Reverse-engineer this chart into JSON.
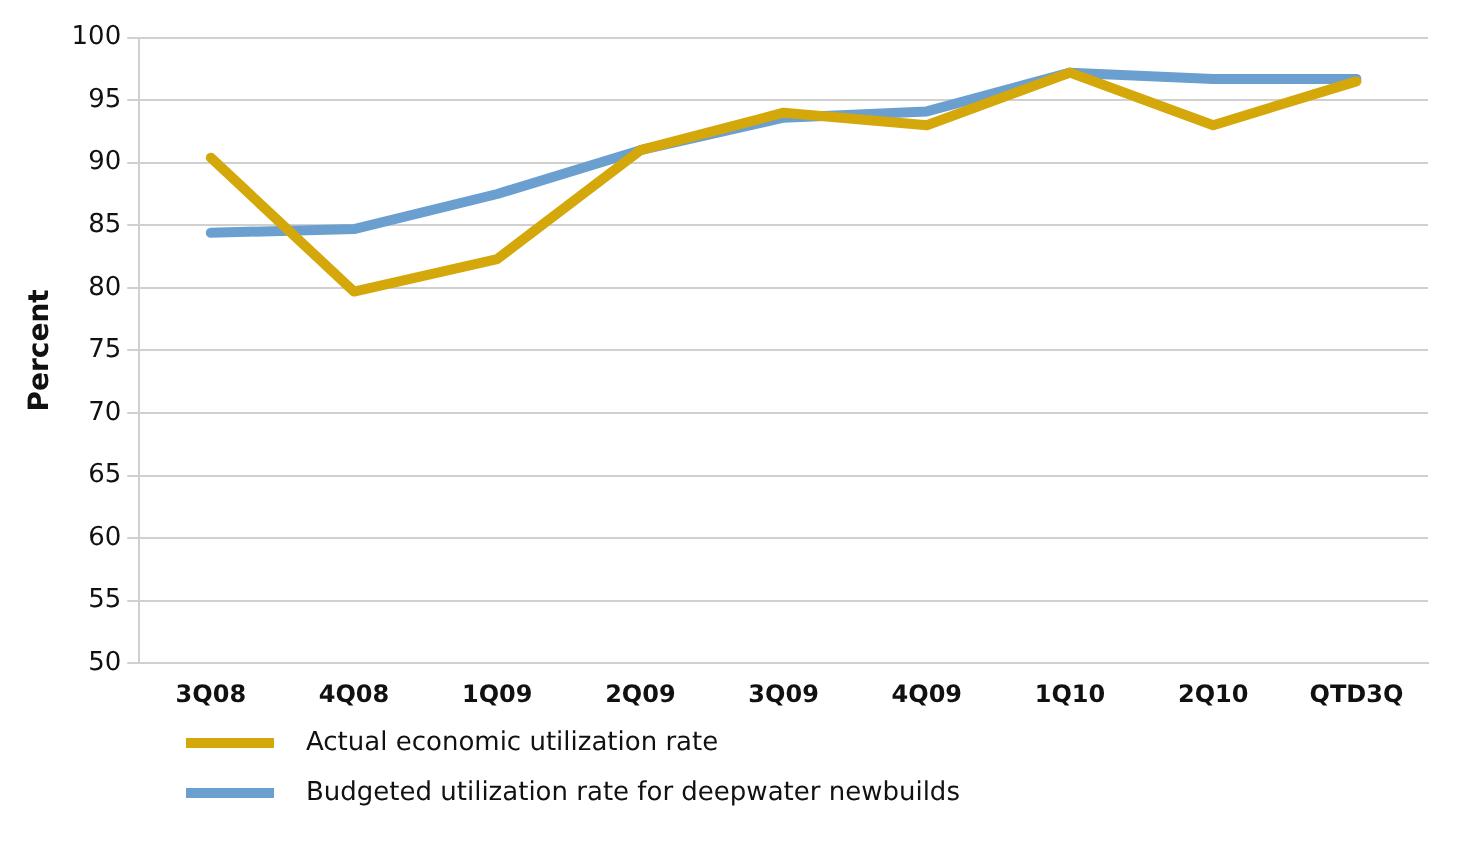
{
  "chart_data": {
    "type": "line",
    "ylabel": "Percent",
    "categories": [
      "3Q08",
      "4Q08",
      "1Q09",
      "2Q09",
      "3Q09",
      "4Q09",
      "1Q10",
      "2Q10",
      "QTD3Q"
    ],
    "series": [
      {
        "name": "Actual economic utilization rate",
        "color": "#d4a80a",
        "values": [
          90.4,
          79.7,
          82.3,
          91,
          94,
          93,
          97.2,
          93,
          96.5
        ]
      },
      {
        "name": "Budgeted utilization rate for deepwater newbuilds",
        "color": "#6b9fd0",
        "values": [
          84.4,
          84.7,
          87.5,
          91,
          93.6,
          94.1,
          97.2,
          96.7,
          96.7
        ]
      }
    ],
    "ylim": [
      50,
      100
    ],
    "yticks": [
      50,
      55,
      60,
      65,
      70,
      75,
      80,
      85,
      90,
      95,
      100
    ],
    "grid": "y",
    "legend": "bottom",
    "marker": "none",
    "line_style": "solid"
  }
}
